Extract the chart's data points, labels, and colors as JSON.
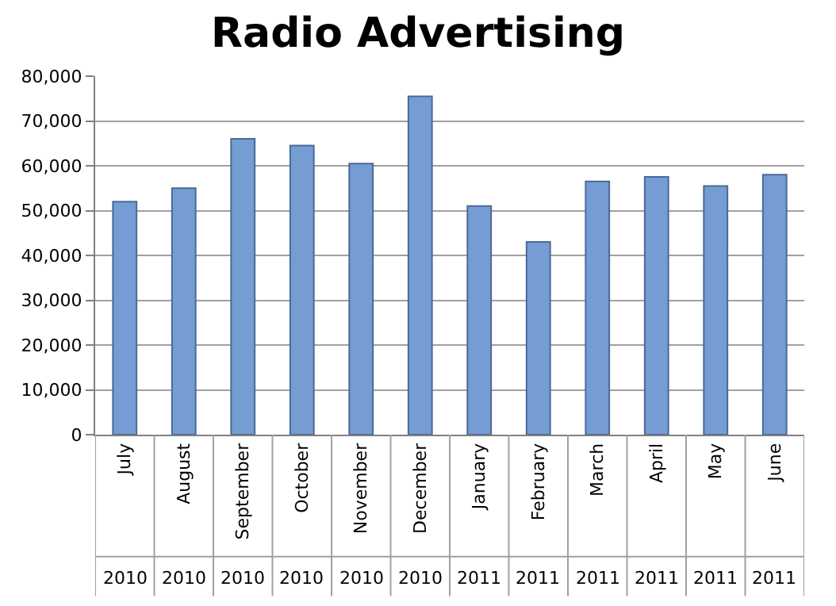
{
  "chart_data": {
    "type": "bar",
    "title": "Radio Advertising",
    "categories": [
      "July",
      "August",
      "September",
      "October",
      "November",
      "December",
      "January",
      "February",
      "March",
      "April",
      "May",
      "June"
    ],
    "values": [
      52000,
      55000,
      66000,
      64500,
      60500,
      75500,
      51000,
      43000,
      56500,
      57500,
      55500,
      58000
    ],
    "color": "#759dd4",
    "ylim": [
      0,
      80000
    ],
    "yticks": [
      {
        "value": 0,
        "label": "0"
      },
      {
        "value": 10000,
        "label": "10,000"
      },
      {
        "value": 20000,
        "label": "20,000"
      },
      {
        "value": 30000,
        "label": "30,000"
      },
      {
        "value": 40000,
        "label": "40,000"
      },
      {
        "value": 50000,
        "label": "50,000"
      },
      {
        "value": 60000,
        "label": "60,000"
      },
      {
        "value": 70000,
        "label": "70,000"
      },
      {
        "value": 80000,
        "label": "80,000"
      }
    ],
    "grid": "y",
    "annotations": [
      "2010",
      "2010",
      "2010",
      "2010",
      "2010",
      "2010",
      "2011",
      "2011",
      "2011",
      "2011",
      "2011",
      "2011"
    ]
  }
}
